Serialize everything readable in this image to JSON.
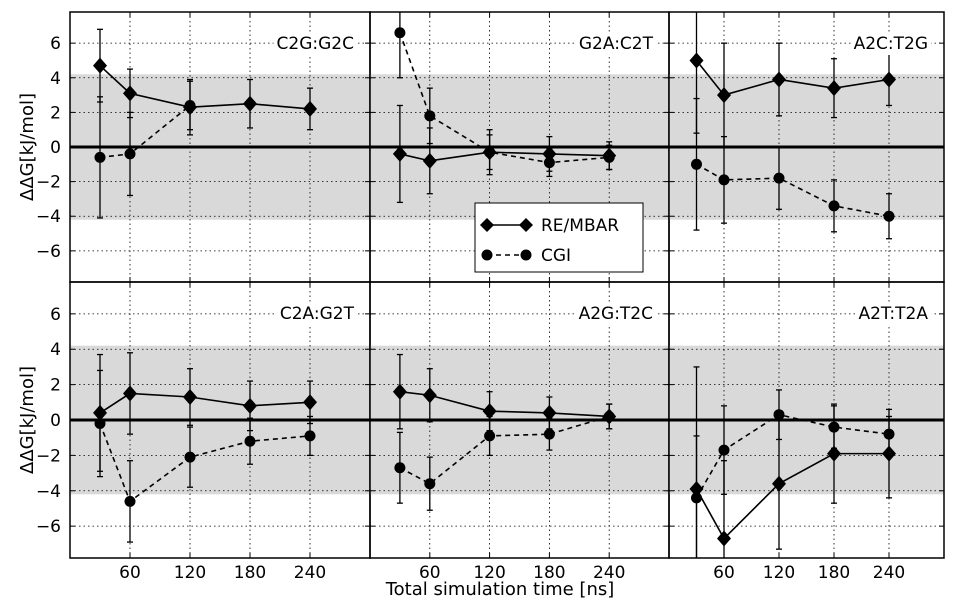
{
  "chart_data": {
    "type": "line",
    "xlabel": "Total simulation time [ns]",
    "ylabel": "ΔΔG[kJ/mol]",
    "xlim": [
      0,
      300
    ],
    "ylim": [
      -7.8,
      7.8
    ],
    "xticks": [
      60,
      120,
      180,
      240
    ],
    "yticks": [
      -6,
      -4,
      -2,
      0,
      2,
      4,
      6
    ],
    "shaded_band": [
      -4.2,
      4.2
    ],
    "reference_line": 0,
    "grid": true,
    "legend": {
      "placement": "center",
      "entries": [
        {
          "name": "RE/MBAR",
          "marker": "diamond",
          "line": "solid"
        },
        {
          "name": "CGI",
          "marker": "circle",
          "line": "dashed"
        }
      ]
    },
    "panels": [
      {
        "title": "C2G:G2C",
        "series": [
          {
            "name": "RE/MBAR",
            "x": [
              30,
              60,
              120,
              180,
              240
            ],
            "y": [
              4.7,
              3.1,
              2.3,
              2.5,
              2.2
            ],
            "err": [
              2.1,
              1.4,
              1.6,
              1.4,
              1.2
            ]
          },
          {
            "name": "CGI",
            "x": [
              30,
              60,
              120
            ],
            "y": [
              -0.6,
              -0.4,
              2.4
            ],
            "err": [
              3.5,
              2.4,
              1.4
            ]
          }
        ]
      },
      {
        "title": "G2A:C2T",
        "series": [
          {
            "name": "RE/MBAR",
            "x": [
              30,
              60,
              120,
              180,
              240
            ],
            "y": [
              -0.4,
              -0.8,
              -0.3,
              -0.4,
              -0.5
            ],
            "err": [
              2.8,
              1.9,
              1.3,
              1.0,
              0.8
            ]
          },
          {
            "name": "CGI",
            "x": [
              30,
              60,
              120,
              180,
              240
            ],
            "y": [
              6.6,
              1.8,
              -0.3,
              -0.9,
              -0.6
            ],
            "err": [
              2.6,
              1.6,
              1.0,
              0.8,
              0.7
            ]
          }
        ]
      },
      {
        "title": "A2C:T2G",
        "series": [
          {
            "name": "RE/MBAR",
            "x": [
              30,
              60,
              120,
              180,
              240
            ],
            "y": [
              5.0,
              3.0,
              3.9,
              3.4,
              3.9
            ],
            "err": [
              4.2,
              3.0,
              2.1,
              1.7,
              1.5
            ]
          },
          {
            "name": "CGI",
            "x": [
              30,
              60,
              120,
              180,
              240
            ],
            "y": [
              -1.0,
              -1.9,
              -1.8,
              -3.4,
              -4.0
            ],
            "err": [
              3.8,
              2.5,
              1.8,
              1.5,
              1.3
            ]
          }
        ]
      },
      {
        "title": "C2A:G2T",
        "series": [
          {
            "name": "RE/MBAR",
            "x": [
              30,
              60,
              120,
              180,
              240
            ],
            "y": [
              0.4,
              1.5,
              1.3,
              0.8,
              1.0
            ],
            "err": [
              3.3,
              2.3,
              1.6,
              1.4,
              1.2
            ]
          },
          {
            "name": "CGI",
            "x": [
              30,
              60,
              120,
              180,
              240
            ],
            "y": [
              -0.2,
              -4.6,
              -2.1,
              -1.2,
              -0.9
            ],
            "err": [
              3.0,
              2.3,
              1.7,
              1.3,
              1.1
            ]
          }
        ]
      },
      {
        "title": "A2G:T2C",
        "series": [
          {
            "name": "RE/MBAR",
            "x": [
              30,
              60,
              120,
              180,
              240
            ],
            "y": [
              1.6,
              1.4,
              0.5,
              0.4,
              0.2
            ],
            "err": [
              2.1,
              1.5,
              1.1,
              0.9,
              0.7
            ]
          },
          {
            "name": "CGI",
            "x": [
              30,
              60,
              120,
              180,
              240
            ],
            "y": [
              -2.7,
              -3.6,
              -0.9,
              -0.8,
              0.2
            ],
            "err": [
              2.0,
              1.5,
              1.1,
              0.9,
              0.7
            ]
          }
        ]
      },
      {
        "title": "A2T:T2A",
        "series": [
          {
            "name": "RE/MBAR",
            "x": [
              30,
              60,
              120,
              180,
              240
            ],
            "y": [
              -3.9,
              -6.7,
              -3.6,
              -1.9,
              -1.9
            ],
            "err": [
              6.9,
              4.4,
              3.7,
              2.8,
              2.5
            ]
          },
          {
            "name": "CGI",
            "x": [
              30,
              60,
              120,
              180,
              240
            ],
            "y": [
              -4.4,
              -1.7,
              0.3,
              -0.4,
              -0.8
            ],
            "err": [
              3.5,
              2.5,
              1.4,
              1.2,
              1.0
            ]
          }
        ]
      }
    ]
  }
}
